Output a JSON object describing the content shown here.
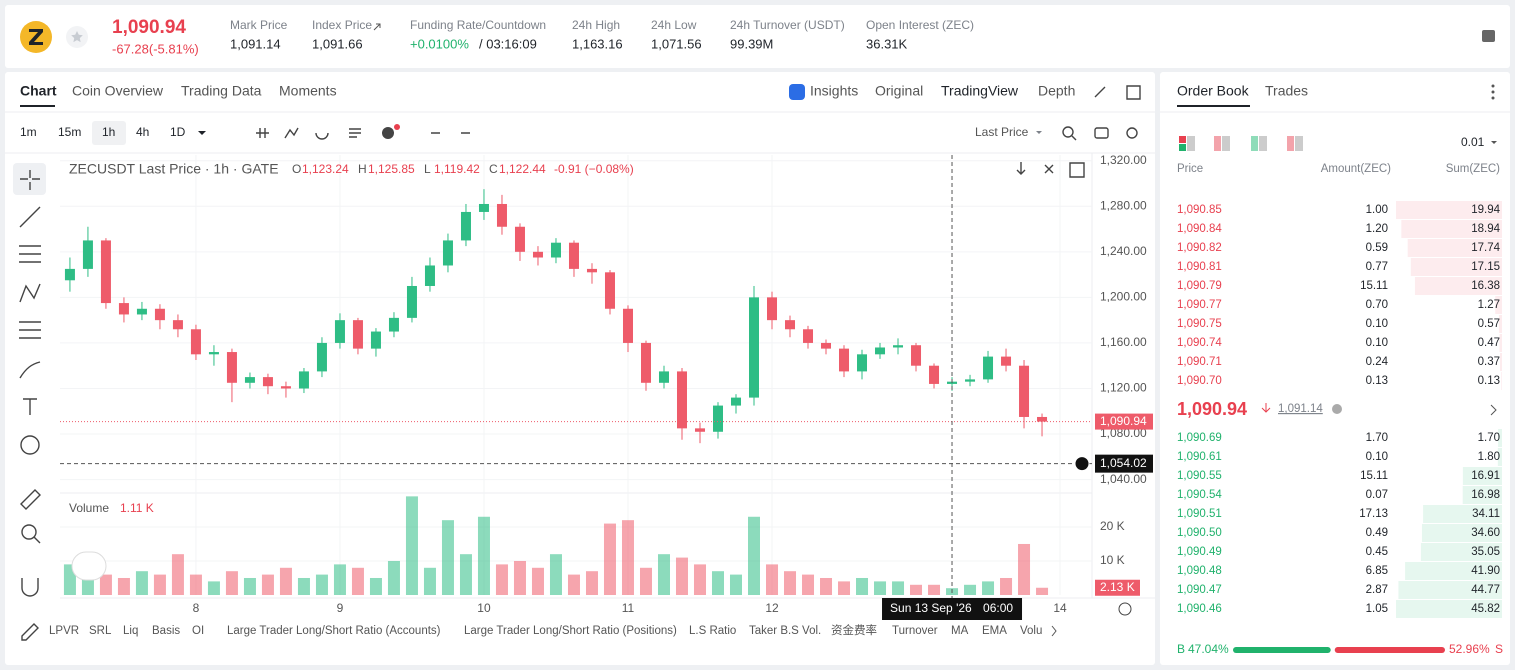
{
  "header": {
    "last_price": "1,090.94",
    "change": "-67.28(-5.81%)",
    "stats": [
      {
        "label": "Mark Price",
        "value": "1,091.14"
      },
      {
        "label": "Index Price",
        "value": "1,091.66"
      },
      {
        "label": "Funding Rate/Countdown",
        "value": "+0.0100%",
        "countdown": "/ 03:16:09"
      },
      {
        "label": "24h High",
        "value": "1,163.16"
      },
      {
        "label": "24h Low",
        "value": "1,071.56"
      },
      {
        "label": "24h Turnover (USDT)",
        "value": "99.39M"
      },
      {
        "label": "Open Interest (ZEC)",
        "value": "36.31K"
      }
    ]
  },
  "tabs": [
    "Chart",
    "Coin Overview",
    "Trading Data",
    "Moments"
  ],
  "view_tabs": [
    "Insights",
    "Original",
    "TradingView",
    "Depth"
  ],
  "intervals": [
    "1m",
    "15m",
    "1h",
    "4h",
    "1D"
  ],
  "price_type": "Last Price",
  "indicators": [
    "LPVR",
    "SRL",
    "Liq",
    "Basis",
    "OI",
    "Large Trader Long/Short Ratio (Accounts)",
    "Large Trader Long/Short Ratio (Positions)",
    "L.S Ratio",
    "Taker B.S Vol.",
    "资金费率",
    "Turnover",
    "MA",
    "EMA",
    "Volu"
  ],
  "chart_data": {
    "type": "candlestick",
    "title": "ZECUSDT Last Price · 1h · GATE",
    "legend": [
      {
        "key": "O",
        "value": "1,123.24"
      },
      {
        "key": "H",
        "value": "1,125.85"
      },
      {
        "key": "L",
        "value": "1,119.42"
      },
      {
        "key": "C",
        "value": "1,122.44"
      }
    ],
    "legend_change": "-0.91 (−0.08%)",
    "up_color": "#2ebd85",
    "down_color": "#ee5b6a",
    "x": [
      7.125,
      7.25,
      7.375,
      7.5,
      7.625,
      7.75,
      7.875,
      8,
      8.125,
      8.25,
      8.375,
      8.5,
      8.625,
      8.75,
      8.875,
      9,
      9.125,
      9.25,
      9.375,
      9.5,
      9.625,
      9.75,
      9.875,
      10,
      10.125,
      10.25,
      10.375,
      10.5,
      10.625,
      10.75,
      10.875,
      11,
      11.125,
      11.25,
      11.375,
      11.5,
      11.625,
      11.75,
      11.875,
      12,
      12.125,
      12.25,
      12.375,
      12.5,
      12.625,
      12.75,
      12.875,
      13,
      13.125,
      13.25,
      13.375,
      13.5,
      13.625,
      13.75,
      13.875
    ],
    "open": [
      1215,
      1225,
      1250,
      1195,
      1185,
      1190,
      1180,
      1172,
      1150,
      1152,
      1125,
      1130,
      1122,
      1120,
      1135,
      1160,
      1180,
      1155,
      1170,
      1182,
      1210,
      1228,
      1250,
      1275,
      1282,
      1262,
      1240,
      1235,
      1248,
      1225,
      1222,
      1190,
      1160,
      1125,
      1135,
      1085,
      1082,
      1105,
      1112,
      1200,
      1180,
      1172,
      1160,
      1155,
      1135,
      1150,
      1156,
      1158,
      1140,
      1124,
      1126,
      1128,
      1148,
      1140,
      1095
    ],
    "high": [
      1235,
      1262,
      1252,
      1200,
      1196,
      1194,
      1185,
      1176,
      1158,
      1155,
      1134,
      1133,
      1126,
      1138,
      1165,
      1186,
      1182,
      1173,
      1187,
      1218,
      1235,
      1256,
      1282,
      1295,
      1290,
      1265,
      1245,
      1252,
      1250,
      1230,
      1224,
      1193,
      1162,
      1140,
      1138,
      1090,
      1108,
      1115,
      1210,
      1205,
      1184,
      1175,
      1163,
      1158,
      1154,
      1160,
      1164,
      1160,
      1142,
      1130,
      1132,
      1153,
      1155,
      1145,
      1098
    ],
    "low": [
      1205,
      1218,
      1190,
      1178,
      1180,
      1172,
      1165,
      1145,
      1140,
      1108,
      1120,
      1115,
      1112,
      1116,
      1130,
      1155,
      1150,
      1148,
      1165,
      1178,
      1205,
      1222,
      1245,
      1268,
      1255,
      1232,
      1228,
      1230,
      1218,
      1212,
      1185,
      1152,
      1118,
      1120,
      1075,
      1072,
      1076,
      1098,
      1105,
      1172,
      1165,
      1155,
      1150,
      1130,
      1128,
      1146,
      1150,
      1135,
      1120,
      1118,
      1122,
      1125,
      1135,
      1085,
      1078
    ],
    "close": [
      1225,
      1250,
      1195,
      1185,
      1190,
      1180,
      1172,
      1150,
      1152,
      1125,
      1130,
      1122,
      1120,
      1135,
      1160,
      1180,
      1155,
      1170,
      1182,
      1210,
      1228,
      1250,
      1275,
      1282,
      1262,
      1240,
      1235,
      1248,
      1225,
      1222,
      1190,
      1160,
      1125,
      1135,
      1085,
      1082,
      1105,
      1112,
      1200,
      1180,
      1172,
      1160,
      1155,
      1135,
      1150,
      1156,
      1158,
      1140,
      1124,
      1126,
      1128,
      1148,
      1140,
      1095,
      1090.94
    ],
    "xlim": [
      7.056,
      14.222
    ],
    "xticks": [
      8,
      9,
      10,
      11,
      12,
      14
    ],
    "ylim": [
      1030,
      1325
    ],
    "yticks": [
      {
        "value": 1320,
        "label": "1,320.00"
      },
      {
        "value": 1280,
        "label": "1,280.00"
      },
      {
        "value": 1240,
        "label": "1,240.00"
      },
      {
        "value": 1200,
        "label": "1,200.00"
      },
      {
        "value": 1160,
        "label": "1,160.00"
      },
      {
        "value": 1120,
        "label": "1,120.00"
      },
      {
        "value": 1080,
        "label": "1,080.00"
      },
      {
        "value": 1040,
        "label": "1,040.00"
      }
    ],
    "last_price": {
      "value": 1090.94,
      "label": "1,090.94"
    },
    "crosshair": {
      "x": 13.25,
      "value": 1054.02,
      "label": "1,054.02",
      "date": "Sun 13 Sep '26",
      "time": "06:00"
    },
    "volume": {
      "title": "Volume",
      "legend_value": "1.11 K",
      "values": [
        9000,
        11000,
        6000,
        5000,
        7000,
        6000,
        12000,
        6000,
        4000,
        7000,
        5000,
        6000,
        8000,
        5000,
        6000,
        9000,
        8000,
        5000,
        10000,
        29000,
        8000,
        22000,
        12000,
        23000,
        9000,
        10000,
        8000,
        12000,
        6000,
        7000,
        21000,
        22000,
        8000,
        12000,
        11000,
        9000,
        7000,
        6000,
        23000,
        9000,
        7000,
        6000,
        5000,
        4000,
        5000,
        4000,
        4000,
        3000,
        3000,
        2000,
        3000,
        4000,
        5000,
        15000,
        2130
      ],
      "ylim": [
        0,
        29400
      ],
      "yticks": [
        {
          "value": 20000,
          "label": "20 K"
        },
        {
          "value": 10000,
          "label": "10 K"
        }
      ],
      "last": {
        "value": 2130,
        "label": "2.13 K"
      }
    }
  },
  "order_book": {
    "tabs": [
      "Order Book",
      "Trades"
    ],
    "precision": "0.01",
    "columns": [
      "Price",
      "Amount(ZEC)",
      "Sum(ZEC)"
    ],
    "asks": [
      {
        "price": "1,090.85",
        "amount": "1.00",
        "sum": {
          "value": 19.94,
          "label": "19.94"
        }
      },
      {
        "price": "1,090.84",
        "amount": "1.20",
        "sum": {
          "value": 18.94,
          "label": "18.94"
        }
      },
      {
        "price": "1,090.82",
        "amount": "0.59",
        "sum": {
          "value": 17.74,
          "label": "17.74"
        }
      },
      {
        "price": "1,090.81",
        "amount": "0.77",
        "sum": {
          "value": 17.15,
          "label": "17.15"
        }
      },
      {
        "price": "1,090.79",
        "amount": "15.11",
        "sum": {
          "value": 16.38,
          "label": "16.38"
        }
      },
      {
        "price": "1,090.77",
        "amount": "0.70",
        "sum": {
          "value": 1.27,
          "label": "1.27"
        }
      },
      {
        "price": "1,090.75",
        "amount": "0.10",
        "sum": {
          "value": 0.57,
          "label": "0.57"
        }
      },
      {
        "price": "1,090.74",
        "amount": "0.10",
        "sum": {
          "value": 0.47,
          "label": "0.47"
        }
      },
      {
        "price": "1,090.71",
        "amount": "0.24",
        "sum": {
          "value": 0.37,
          "label": "0.37"
        }
      },
      {
        "price": "1,090.70",
        "amount": "0.13",
        "sum": {
          "value": 0.13,
          "label": "0.13"
        }
      }
    ],
    "mid": "1,090.94",
    "mark": "1,091.14",
    "bids": [
      {
        "price": "1,090.69",
        "amount": "1.70",
        "sum": {
          "value": 1.7,
          "label": "1.70"
        }
      },
      {
        "price": "1,090.61",
        "amount": "0.10",
        "sum": {
          "value": 1.8,
          "label": "1.80"
        }
      },
      {
        "price": "1,090.55",
        "amount": "15.11",
        "sum": {
          "value": 16.91,
          "label": "16.91"
        }
      },
      {
        "price": "1,090.54",
        "amount": "0.07",
        "sum": {
          "value": 16.98,
          "label": "16.98"
        }
      },
      {
        "price": "1,090.51",
        "amount": "17.13",
        "sum": {
          "value": 34.11,
          "label": "34.11"
        }
      },
      {
        "price": "1,090.50",
        "amount": "0.49",
        "sum": {
          "value": 34.6,
          "label": "34.60"
        }
      },
      {
        "price": "1,090.49",
        "amount": "0.45",
        "sum": {
          "value": 35.05,
          "label": "35.05"
        }
      },
      {
        "price": "1,090.48",
        "amount": "6.85",
        "sum": {
          "value": 41.9,
          "label": "41.90"
        }
      },
      {
        "price": "1,090.47",
        "amount": "2.87",
        "sum": {
          "value": 44.77,
          "label": "44.77"
        }
      },
      {
        "price": "1,090.46",
        "amount": "1.05",
        "sum": {
          "value": 45.82,
          "label": "45.82"
        }
      }
    ],
    "ratio": {
      "buy_key": "B",
      "buy": {
        "value": 47.04,
        "label": "47.04%"
      },
      "sell": {
        "value": 52.96,
        "label": "52.96%"
      },
      "sell_key": "S"
    }
  }
}
